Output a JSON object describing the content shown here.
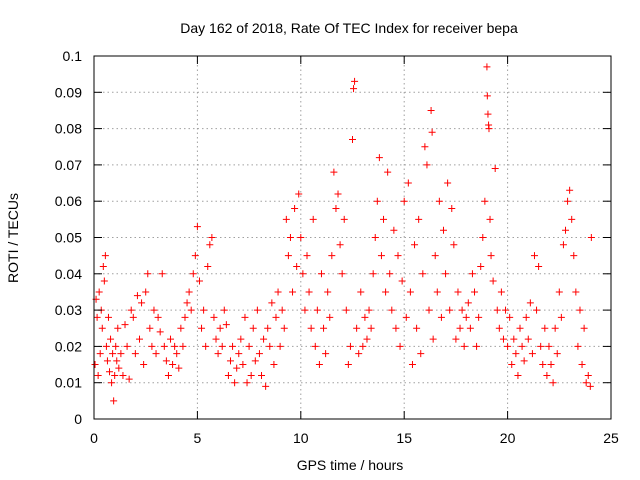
{
  "chart_data": {
    "type": "scatter",
    "title": "Day 162 of 2018, Rate Of TEC Index for receiver bepa",
    "xlabel": "GPS time / hours",
    "ylabel": "ROTI / TECUs",
    "xlim": [
      0,
      25
    ],
    "ylim": [
      0,
      0.1
    ],
    "xticks": [
      "0",
      "5",
      "10",
      "15",
      "20",
      "25"
    ],
    "yticks": [
      "0",
      "0.01",
      "0.02",
      "0.03",
      "0.04",
      "0.05",
      "0.06",
      "0.07",
      "0.08",
      "0.09",
      "0.1"
    ],
    "grid": true,
    "marker": "plus",
    "series_color": "#ff0000",
    "points": [
      [
        0.05,
        0.015
      ],
      [
        0.1,
        0.033
      ],
      [
        0.15,
        0.028
      ],
      [
        0.2,
        0.012
      ],
      [
        0.25,
        0.035
      ],
      [
        0.3,
        0.018
      ],
      [
        0.35,
        0.03
      ],
      [
        0.4,
        0.025
      ],
      [
        0.45,
        0.042
      ],
      [
        0.5,
        0.038
      ],
      [
        0.55,
        0.045
      ],
      [
        0.6,
        0.02
      ],
      [
        0.65,
        0.016
      ],
      [
        0.7,
        0.028
      ],
      [
        0.75,
        0.013
      ],
      [
        0.8,
        0.022
      ],
      [
        0.85,
        0.01
      ],
      [
        0.9,
        0.018
      ],
      [
        0.95,
        0.005
      ],
      [
        1.0,
        0.012
      ],
      [
        1.05,
        0.02
      ],
      [
        1.1,
        0.016
      ],
      [
        1.15,
        0.025
      ],
      [
        1.2,
        0.014
      ],
      [
        1.3,
        0.018
      ],
      [
        1.4,
        0.012
      ],
      [
        1.5,
        0.026
      ],
      [
        1.6,
        0.02
      ],
      [
        1.7,
        0.011
      ],
      [
        1.8,
        0.03
      ],
      [
        1.9,
        0.028
      ],
      [
        2.0,
        0.018
      ],
      [
        2.1,
        0.034
      ],
      [
        2.2,
        0.022
      ],
      [
        2.3,
        0.032
      ],
      [
        2.4,
        0.015
      ],
      [
        2.5,
        0.035
      ],
      [
        2.6,
        0.04
      ],
      [
        2.7,
        0.025
      ],
      [
        2.8,
        0.02
      ],
      [
        2.9,
        0.03
      ],
      [
        3.0,
        0.018
      ],
      [
        3.1,
        0.028
      ],
      [
        3.2,
        0.024
      ],
      [
        3.3,
        0.04
      ],
      [
        3.4,
        0.02
      ],
      [
        3.5,
        0.016
      ],
      [
        3.6,
        0.012
      ],
      [
        3.7,
        0.022
      ],
      [
        3.8,
        0.015
      ],
      [
        3.9,
        0.02
      ],
      [
        4.0,
        0.018
      ],
      [
        4.1,
        0.014
      ],
      [
        4.2,
        0.025
      ],
      [
        4.3,
        0.02
      ],
      [
        4.4,
        0.028
      ],
      [
        4.5,
        0.032
      ],
      [
        4.6,
        0.035
      ],
      [
        4.7,
        0.03
      ],
      [
        4.8,
        0.04
      ],
      [
        4.9,
        0.045
      ],
      [
        5.0,
        0.053
      ],
      [
        5.1,
        0.038
      ],
      [
        5.2,
        0.025
      ],
      [
        5.3,
        0.03
      ],
      [
        5.4,
        0.02
      ],
      [
        5.5,
        0.042
      ],
      [
        5.6,
        0.048
      ],
      [
        5.7,
        0.05
      ],
      [
        5.8,
        0.028
      ],
      [
        5.9,
        0.022
      ],
      [
        6.0,
        0.018
      ],
      [
        6.1,
        0.025
      ],
      [
        6.2,
        0.02
      ],
      [
        6.3,
        0.03
      ],
      [
        6.4,
        0.026
      ],
      [
        6.5,
        0.012
      ],
      [
        6.6,
        0.016
      ],
      [
        6.7,
        0.02
      ],
      [
        6.8,
        0.01
      ],
      [
        6.9,
        0.014
      ],
      [
        7.0,
        0.018
      ],
      [
        7.1,
        0.022
      ],
      [
        7.2,
        0.015
      ],
      [
        7.3,
        0.028
      ],
      [
        7.4,
        0.01
      ],
      [
        7.5,
        0.02
      ],
      [
        7.6,
        0.012
      ],
      [
        7.7,
        0.025
      ],
      [
        7.8,
        0.016
      ],
      [
        7.9,
        0.03
      ],
      [
        8.0,
        0.018
      ],
      [
        8.1,
        0.012
      ],
      [
        8.2,
        0.022
      ],
      [
        8.3,
        0.009
      ],
      [
        8.4,
        0.025
      ],
      [
        8.5,
        0.02
      ],
      [
        8.6,
        0.032
      ],
      [
        8.7,
        0.015
      ],
      [
        8.8,
        0.028
      ],
      [
        8.9,
        0.035
      ],
      [
        9.0,
        0.02
      ],
      [
        9.1,
        0.03
      ],
      [
        9.2,
        0.025
      ],
      [
        9.3,
        0.055
      ],
      [
        9.4,
        0.045
      ],
      [
        9.5,
        0.05
      ],
      [
        9.6,
        0.035
      ],
      [
        9.7,
        0.058
      ],
      [
        9.8,
        0.042
      ],
      [
        9.9,
        0.062
      ],
      [
        10.0,
        0.05
      ],
      [
        10.1,
        0.04
      ],
      [
        10.2,
        0.03
      ],
      [
        10.3,
        0.045
      ],
      [
        10.4,
        0.035
      ],
      [
        10.5,
        0.025
      ],
      [
        10.6,
        0.055
      ],
      [
        10.7,
        0.02
      ],
      [
        10.8,
        0.03
      ],
      [
        10.9,
        0.015
      ],
      [
        11.0,
        0.04
      ],
      [
        11.1,
        0.025
      ],
      [
        11.2,
        0.018
      ],
      [
        11.3,
        0.035
      ],
      [
        11.4,
        0.028
      ],
      [
        11.5,
        0.045
      ],
      [
        11.6,
        0.068
      ],
      [
        11.7,
        0.058
      ],
      [
        11.8,
        0.062
      ],
      [
        11.9,
        0.048
      ],
      [
        12.0,
        0.04
      ],
      [
        12.1,
        0.055
      ],
      [
        12.2,
        0.03
      ],
      [
        12.3,
        0.015
      ],
      [
        12.4,
        0.02
      ],
      [
        12.5,
        0.077
      ],
      [
        12.6,
        0.093
      ],
      [
        12.55,
        0.091
      ],
      [
        12.7,
        0.025
      ],
      [
        12.8,
        0.018
      ],
      [
        12.9,
        0.035
      ],
      [
        13.0,
        0.02
      ],
      [
        13.1,
        0.028
      ],
      [
        13.2,
        0.022
      ],
      [
        13.3,
        0.03
      ],
      [
        13.4,
        0.025
      ],
      [
        13.5,
        0.04
      ],
      [
        13.6,
        0.05
      ],
      [
        13.7,
        0.06
      ],
      [
        13.8,
        0.072
      ],
      [
        13.9,
        0.045
      ],
      [
        14.0,
        0.055
      ],
      [
        14.1,
        0.035
      ],
      [
        14.2,
        0.068
      ],
      [
        14.3,
        0.04
      ],
      [
        14.4,
        0.03
      ],
      [
        14.5,
        0.052
      ],
      [
        14.6,
        0.025
      ],
      [
        14.7,
        0.045
      ],
      [
        14.8,
        0.02
      ],
      [
        14.9,
        0.038
      ],
      [
        15.0,
        0.06
      ],
      [
        15.1,
        0.028
      ],
      [
        15.2,
        0.065
      ],
      [
        15.3,
        0.035
      ],
      [
        15.4,
        0.015
      ],
      [
        15.5,
        0.048
      ],
      [
        15.6,
        0.025
      ],
      [
        15.7,
        0.055
      ],
      [
        15.8,
        0.018
      ],
      [
        15.9,
        0.04
      ],
      [
        16.0,
        0.075
      ],
      [
        16.1,
        0.07
      ],
      [
        16.2,
        0.03
      ],
      [
        16.3,
        0.085
      ],
      [
        16.35,
        0.079
      ],
      [
        16.4,
        0.022
      ],
      [
        16.5,
        0.045
      ],
      [
        16.6,
        0.035
      ],
      [
        16.7,
        0.06
      ],
      [
        16.8,
        0.028
      ],
      [
        16.9,
        0.052
      ],
      [
        17.0,
        0.04
      ],
      [
        17.1,
        0.065
      ],
      [
        17.2,
        0.03
      ],
      [
        17.3,
        0.058
      ],
      [
        17.4,
        0.048
      ],
      [
        17.5,
        0.022
      ],
      [
        17.6,
        0.035
      ],
      [
        17.7,
        0.025
      ],
      [
        17.8,
        0.03
      ],
      [
        17.9,
        0.02
      ],
      [
        18.0,
        0.028
      ],
      [
        18.1,
        0.032
      ],
      [
        18.2,
        0.025
      ],
      [
        18.3,
        0.04
      ],
      [
        18.4,
        0.035
      ],
      [
        18.5,
        0.02
      ],
      [
        18.6,
        0.028
      ],
      [
        18.7,
        0.042
      ],
      [
        18.8,
        0.05
      ],
      [
        18.9,
        0.06
      ],
      [
        19.0,
        0.097
      ],
      [
        19.02,
        0.089
      ],
      [
        19.05,
        0.084
      ],
      [
        19.08,
        0.081
      ],
      [
        19.1,
        0.08
      ],
      [
        19.15,
        0.055
      ],
      [
        19.2,
        0.045
      ],
      [
        19.3,
        0.038
      ],
      [
        19.4,
        0.069
      ],
      [
        19.5,
        0.03
      ],
      [
        19.6,
        0.025
      ],
      [
        19.7,
        0.035
      ],
      [
        19.8,
        0.022
      ],
      [
        19.9,
        0.03
      ],
      [
        20.0,
        0.02
      ],
      [
        20.1,
        0.028
      ],
      [
        20.2,
        0.015
      ],
      [
        20.3,
        0.022
      ],
      [
        20.4,
        0.018
      ],
      [
        20.5,
        0.012
      ],
      [
        20.6,
        0.025
      ],
      [
        20.7,
        0.02
      ],
      [
        20.8,
        0.016
      ],
      [
        20.9,
        0.028
      ],
      [
        21.0,
        0.022
      ],
      [
        21.1,
        0.032
      ],
      [
        21.2,
        0.018
      ],
      [
        21.3,
        0.045
      ],
      [
        21.4,
        0.03
      ],
      [
        21.5,
        0.042
      ],
      [
        21.6,
        0.02
      ],
      [
        21.7,
        0.015
      ],
      [
        21.8,
        0.025
      ],
      [
        21.9,
        0.012
      ],
      [
        22.0,
        0.02
      ],
      [
        22.1,
        0.015
      ],
      [
        22.2,
        0.01
      ],
      [
        22.3,
        0.025
      ],
      [
        22.4,
        0.018
      ],
      [
        22.5,
        0.035
      ],
      [
        22.6,
        0.028
      ],
      [
        22.7,
        0.048
      ],
      [
        22.8,
        0.052
      ],
      [
        22.9,
        0.06
      ],
      [
        23.0,
        0.063
      ],
      [
        23.1,
        0.055
      ],
      [
        23.2,
        0.045
      ],
      [
        23.3,
        0.035
      ],
      [
        23.4,
        0.02
      ],
      [
        23.5,
        0.03
      ],
      [
        23.6,
        0.015
      ],
      [
        23.7,
        0.025
      ],
      [
        23.8,
        0.01
      ],
      [
        23.9,
        0.012
      ],
      [
        24.0,
        0.009
      ],
      [
        24.05,
        0.05
      ]
    ]
  }
}
